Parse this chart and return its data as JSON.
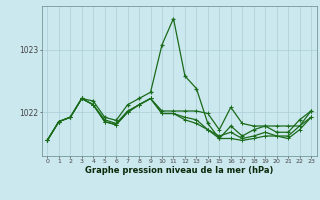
{
  "xlabel": "Graphe pression niveau de la mer (hPa)",
  "background_color": "#cce8ef",
  "grid_color": "#aacdd6",
  "line_color": "#1a6b1a",
  "x_ticks": [
    0,
    1,
    2,
    3,
    4,
    5,
    6,
    7,
    8,
    9,
    10,
    11,
    12,
    13,
    14,
    15,
    16,
    17,
    18,
    19,
    20,
    21,
    22,
    23
  ],
  "ylim": [
    1021.3,
    1023.7
  ],
  "yticks": [
    1022,
    1023
  ],
  "series_main": [
    1021.55,
    1021.85,
    1021.92,
    1022.22,
    1022.18,
    1021.92,
    1021.87,
    1022.12,
    1022.22,
    1022.32,
    1023.08,
    1023.5,
    1022.58,
    1022.38,
    1021.82,
    1021.58,
    1021.78,
    1021.62,
    1021.72,
    1021.78,
    1021.68,
    1021.68,
    1021.88,
    1022.02
  ],
  "series2": [
    1021.55,
    1021.85,
    1021.92,
    1022.22,
    1022.12,
    1021.88,
    1021.82,
    1022.02,
    1022.12,
    1022.22,
    1022.02,
    1022.02,
    1022.02,
    1022.02,
    1021.98,
    1021.72,
    1022.08,
    1021.82,
    1021.78,
    1021.78,
    1021.78,
    1021.78,
    1021.78,
    1022.02
  ],
  "series3": [
    1021.55,
    1021.85,
    1021.92,
    1022.22,
    1022.12,
    1021.85,
    1021.8,
    1022.0,
    1022.12,
    1022.22,
    1021.98,
    1021.98,
    1021.92,
    1021.88,
    1021.72,
    1021.62,
    1021.68,
    1021.58,
    1021.62,
    1021.68,
    1021.62,
    1021.62,
    1021.78,
    1021.92
  ],
  "series4": [
    1021.55,
    1021.85,
    1021.92,
    1022.22,
    1022.12,
    1021.85,
    1021.8,
    1022.0,
    1022.12,
    1022.22,
    1021.98,
    1021.98,
    1021.88,
    1021.82,
    1021.72,
    1021.58,
    1021.58,
    1021.55,
    1021.58,
    1021.62,
    1021.62,
    1021.58,
    1021.72,
    1021.92
  ]
}
